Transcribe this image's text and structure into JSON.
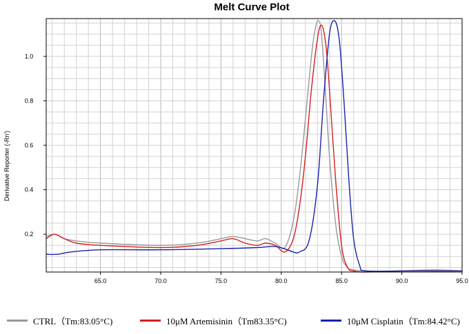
{
  "chart_data": {
    "type": "line",
    "title": "Melt Curve Plot",
    "xlabel": "",
    "ylabel": "Derivative Reporter (-Rn')",
    "xlim": [
      60.5,
      95.0
    ],
    "ylim": [
      0.03,
      1.17
    ],
    "x_ticks": [
      "65.0",
      "70.0",
      "75.0",
      "80.0",
      "85.0",
      "90.0",
      "95.0"
    ],
    "y_ticks": [
      "0.2",
      "0.4",
      "0.6",
      "0.8",
      "1.0"
    ],
    "grid": true,
    "legend_position": "bottom",
    "series": [
      {
        "name": "CTRL（Tm:83.05°C)",
        "color": "#999999",
        "x": [
          60.5,
          61.2,
          62.0,
          63.0,
          65.0,
          70.0,
          73.0,
          75.0,
          76.0,
          77.0,
          78.0,
          78.7,
          79.5,
          80.3,
          81.0,
          81.5,
          82.0,
          82.5,
          82.8,
          83.05,
          83.3,
          83.6,
          84.0,
          84.5,
          85.0,
          85.5,
          86.0,
          87.0,
          90.0,
          92.5,
          95.0
        ],
        "y": [
          0.19,
          0.2,
          0.18,
          0.17,
          0.16,
          0.15,
          0.16,
          0.18,
          0.19,
          0.18,
          0.17,
          0.18,
          0.16,
          0.14,
          0.26,
          0.45,
          0.72,
          1.0,
          1.12,
          1.16,
          1.12,
          0.9,
          0.55,
          0.25,
          0.1,
          0.05,
          0.04,
          0.035,
          0.035,
          0.04,
          0.035
        ]
      },
      {
        "name": "10μM Artemisinin（Tm83.35°C)",
        "color": "#d11f1f",
        "x": [
          60.5,
          61.2,
          62.0,
          63.0,
          65.0,
          70.0,
          73.0,
          75.0,
          76.0,
          77.0,
          78.0,
          78.7,
          79.5,
          80.3,
          81.0,
          81.5,
          82.0,
          82.5,
          83.0,
          83.35,
          83.7,
          84.0,
          84.5,
          85.0,
          85.5,
          86.0,
          87.0,
          90.0,
          92.5,
          95.0
        ],
        "y": [
          0.18,
          0.2,
          0.18,
          0.16,
          0.15,
          0.14,
          0.15,
          0.17,
          0.18,
          0.16,
          0.15,
          0.16,
          0.15,
          0.12,
          0.18,
          0.32,
          0.55,
          0.85,
          1.08,
          1.14,
          1.05,
          0.85,
          0.45,
          0.15,
          0.05,
          0.035,
          0.03,
          0.035,
          0.035,
          0.035
        ]
      },
      {
        "name": "10μM Cisplatin（Tm:84.42°C)",
        "color": "#1a22a8",
        "x": [
          60.5,
          61.5,
          62.5,
          65.0,
          70.0,
          75.0,
          78.0,
          79.5,
          80.5,
          81.0,
          81.5,
          82.3,
          83.0,
          83.5,
          84.0,
          84.42,
          84.8,
          85.2,
          85.6,
          86.0,
          86.5,
          87.0,
          90.0,
          92.5,
          95.0
        ],
        "y": [
          0.11,
          0.11,
          0.12,
          0.13,
          0.13,
          0.135,
          0.14,
          0.145,
          0.13,
          0.12,
          0.12,
          0.17,
          0.42,
          0.8,
          1.1,
          1.16,
          1.08,
          0.8,
          0.45,
          0.18,
          0.06,
          0.035,
          0.035,
          0.035,
          0.035
        ]
      }
    ]
  }
}
